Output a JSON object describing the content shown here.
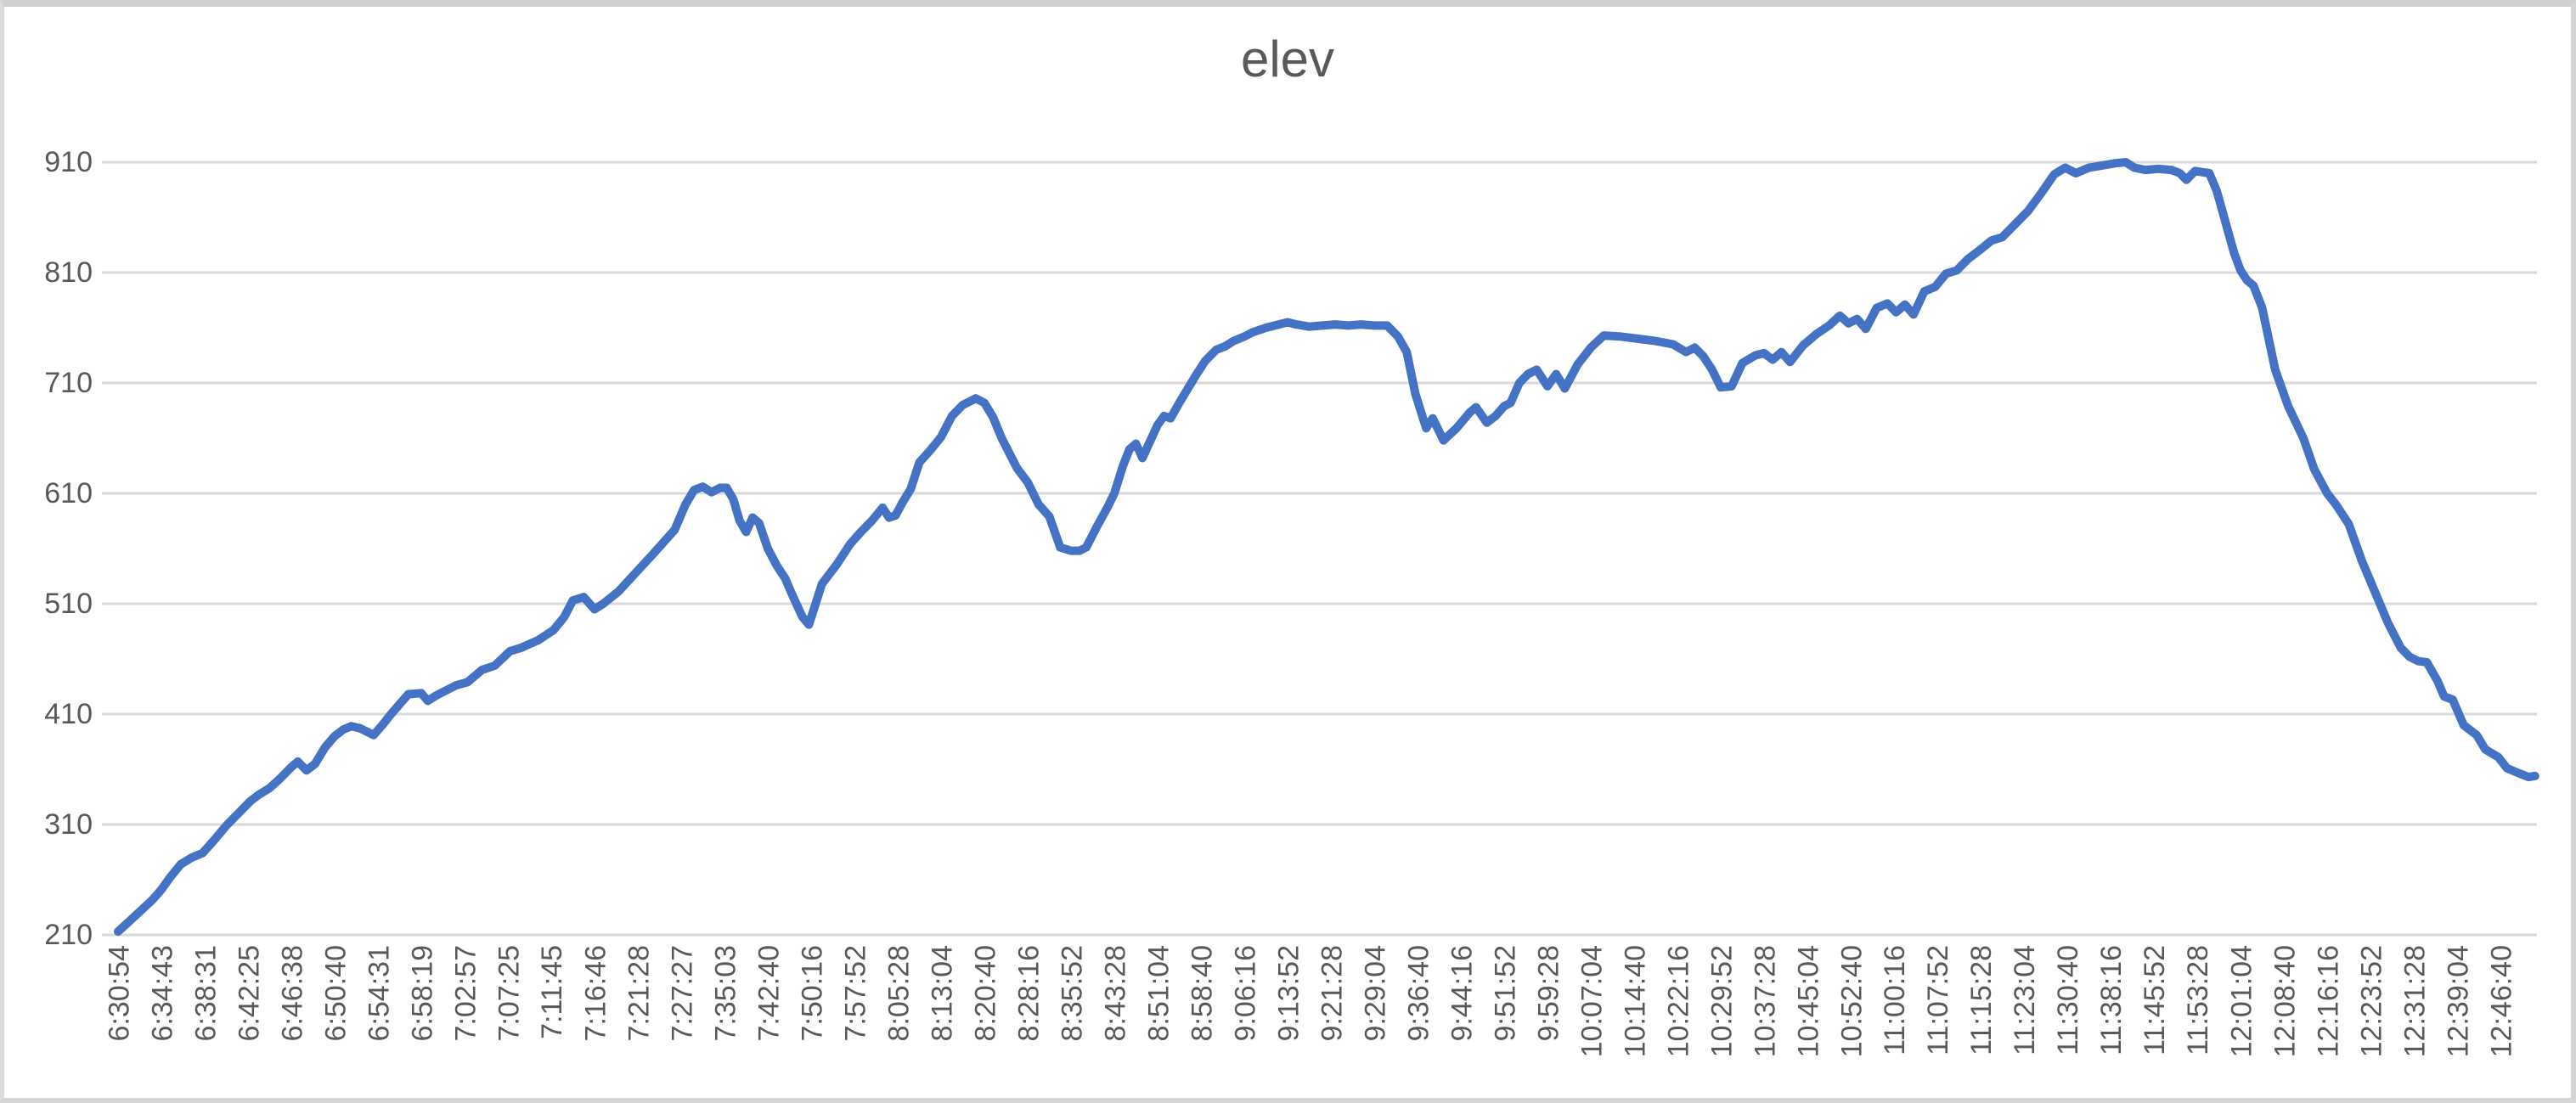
{
  "chart_data": {
    "type": "line",
    "title": "elev",
    "xlabel": "",
    "ylabel": "",
    "ylim": [
      210,
      910
    ],
    "y_ticks": [
      910,
      810,
      710,
      610,
      510,
      410,
      310,
      210
    ],
    "grid": "horizontal",
    "legend": "none",
    "gridline_color": "#D9D9D9",
    "axis_text_color": "#595959",
    "title_color": "#595959",
    "x_units": "category index; one unit equals one x-axis label interval, labels listed in x_tick_labels",
    "x_tick_labels": [
      "6:30:54",
      "6:34:43",
      "6:38:31",
      "6:42:25",
      "6:46:38",
      "6:50:40",
      "6:54:31",
      "6:58:19",
      "7:02:57",
      "7:07:25",
      "7:11:45",
      "7:16:46",
      "7:21:28",
      "7:27:27",
      "7:35:03",
      "7:42:40",
      "7:50:16",
      "7:57:52",
      "8:05:28",
      "8:13:04",
      "8:20:40",
      "8:28:16",
      "8:35:52",
      "8:43:28",
      "8:51:04",
      "8:58:40",
      "9:06:16",
      "9:13:52",
      "9:21:28",
      "9:29:04",
      "9:36:40",
      "9:44:16",
      "9:51:52",
      "9:59:28",
      "10:07:04",
      "10:14:40",
      "10:22:16",
      "10:29:52",
      "10:37:28",
      "10:45:04",
      "10:52:40",
      "11:00:16",
      "11:07:52",
      "11:15:28",
      "11:23:04",
      "11:30:40",
      "11:38:16",
      "11:45:52",
      "11:53:28",
      "12:01:04",
      "12:08:40",
      "12:16:16",
      "12:23:52",
      "12:31:28",
      "12:39:04",
      "12:46:40"
    ],
    "series": [
      {
        "name": "elev",
        "color": "#4472C4",
        "stroke_width": 10,
        "points": [
          [
            0,
            213
          ],
          [
            0.25,
            222
          ],
          [
            0.5,
            231
          ],
          [
            0.8,
            242
          ],
          [
            1.0,
            251
          ],
          [
            1.2,
            262
          ],
          [
            1.45,
            274
          ],
          [
            1.7,
            280
          ],
          [
            1.95,
            284
          ],
          [
            2.2,
            295
          ],
          [
            2.5,
            309
          ],
          [
            2.8,
            321
          ],
          [
            3.05,
            331
          ],
          [
            3.25,
            337
          ],
          [
            3.5,
            343
          ],
          [
            3.75,
            352
          ],
          [
            4.0,
            362
          ],
          [
            4.15,
            367
          ],
          [
            4.35,
            359
          ],
          [
            4.55,
            365
          ],
          [
            4.78,
            380
          ],
          [
            5.0,
            390
          ],
          [
            5.2,
            396
          ],
          [
            5.38,
            399
          ],
          [
            5.6,
            397
          ],
          [
            5.9,
            391
          ],
          [
            6.1,
            400
          ],
          [
            6.28,
            409
          ],
          [
            6.5,
            419
          ],
          [
            6.7,
            428
          ],
          [
            7.0,
            429
          ],
          [
            7.15,
            422
          ],
          [
            7.35,
            427
          ],
          [
            7.6,
            432
          ],
          [
            7.8,
            436
          ],
          [
            8.07,
            439
          ],
          [
            8.4,
            450
          ],
          [
            8.7,
            454
          ],
          [
            9.05,
            467
          ],
          [
            9.3,
            470
          ],
          [
            9.7,
            477
          ],
          [
            10.05,
            486
          ],
          [
            10.3,
            498
          ],
          [
            10.5,
            513
          ],
          [
            10.75,
            516
          ],
          [
            11.0,
            505
          ],
          [
            11.2,
            510
          ],
          [
            11.55,
            521
          ],
          [
            11.95,
            538
          ],
          [
            12.35,
            555
          ],
          [
            12.85,
            577
          ],
          [
            13.1,
            600
          ],
          [
            13.3,
            613
          ],
          [
            13.5,
            616
          ],
          [
            13.7,
            611
          ],
          [
            13.9,
            615
          ],
          [
            14.05,
            615
          ],
          [
            14.2,
            605
          ],
          [
            14.35,
            585
          ],
          [
            14.5,
            575
          ],
          [
            14.65,
            588
          ],
          [
            14.8,
            583
          ],
          [
            15.0,
            560
          ],
          [
            15.2,
            545
          ],
          [
            15.4,
            533
          ],
          [
            15.6,
            515
          ],
          [
            15.8,
            498
          ],
          [
            15.95,
            491
          ],
          [
            16.25,
            528
          ],
          [
            16.6,
            546
          ],
          [
            16.9,
            564
          ],
          [
            17.15,
            575
          ],
          [
            17.4,
            585
          ],
          [
            17.65,
            597
          ],
          [
            17.8,
            588
          ],
          [
            17.95,
            590
          ],
          [
            18.1,
            601
          ],
          [
            18.3,
            614
          ],
          [
            18.5,
            638
          ],
          [
            18.75,
            649
          ],
          [
            19.0,
            661
          ],
          [
            19.25,
            680
          ],
          [
            19.5,
            690
          ],
          [
            19.65,
            693
          ],
          [
            19.8,
            696
          ],
          [
            20.0,
            692
          ],
          [
            20.2,
            679
          ],
          [
            20.4,
            660
          ],
          [
            20.75,
            633
          ],
          [
            21.0,
            620
          ],
          [
            21.25,
            600
          ],
          [
            21.5,
            589
          ],
          [
            21.75,
            561
          ],
          [
            22.0,
            558
          ],
          [
            22.2,
            558
          ],
          [
            22.35,
            561
          ],
          [
            22.6,
            580
          ],
          [
            22.85,
            598
          ],
          [
            23.0,
            610
          ],
          [
            23.2,
            635
          ],
          [
            23.35,
            650
          ],
          [
            23.5,
            655
          ],
          [
            23.65,
            642
          ],
          [
            23.8,
            655
          ],
          [
            24.0,
            672
          ],
          [
            24.15,
            680
          ],
          [
            24.3,
            678
          ],
          [
            24.5,
            692
          ],
          [
            24.7,
            705
          ],
          [
            24.9,
            718
          ],
          [
            25.1,
            730
          ],
          [
            25.35,
            740
          ],
          [
            25.55,
            743
          ],
          [
            25.75,
            748
          ],
          [
            26.0,
            752
          ],
          [
            26.2,
            756
          ],
          [
            26.5,
            760
          ],
          [
            26.8,
            763
          ],
          [
            27.0,
            765
          ],
          [
            27.2,
            763
          ],
          [
            27.5,
            761
          ],
          [
            27.8,
            762
          ],
          [
            28.1,
            763
          ],
          [
            28.4,
            762
          ],
          [
            28.7,
            763
          ],
          [
            29.0,
            762
          ],
          [
            29.3,
            762
          ],
          [
            29.55,
            752
          ],
          [
            29.75,
            738
          ],
          [
            29.95,
            700
          ],
          [
            30.2,
            669
          ],
          [
            30.35,
            678
          ],
          [
            30.6,
            658
          ],
          [
            30.9,
            669
          ],
          [
            31.2,
            683
          ],
          [
            31.35,
            688
          ],
          [
            31.6,
            674
          ],
          [
            31.8,
            680
          ],
          [
            32.0,
            689
          ],
          [
            32.15,
            692
          ],
          [
            32.35,
            710
          ],
          [
            32.55,
            718
          ],
          [
            32.75,
            722
          ],
          [
            33.0,
            707
          ],
          [
            33.2,
            718
          ],
          [
            33.4,
            705
          ],
          [
            33.7,
            727
          ],
          [
            34.0,
            742
          ],
          [
            34.3,
            753
          ],
          [
            34.7,
            752
          ],
          [
            35.1,
            750
          ],
          [
            35.5,
            748
          ],
          [
            35.9,
            745
          ],
          [
            36.2,
            738
          ],
          [
            36.4,
            742
          ],
          [
            36.6,
            734
          ],
          [
            36.8,
            722
          ],
          [
            37.0,
            706
          ],
          [
            37.25,
            707
          ],
          [
            37.5,
            728
          ],
          [
            37.8,
            735
          ],
          [
            38.0,
            737
          ],
          [
            38.2,
            731
          ],
          [
            38.4,
            738
          ],
          [
            38.6,
            729
          ],
          [
            38.9,
            744
          ],
          [
            39.2,
            754
          ],
          [
            39.5,
            762
          ],
          [
            39.75,
            771
          ],
          [
            39.95,
            764
          ],
          [
            40.15,
            768
          ],
          [
            40.35,
            759
          ],
          [
            40.6,
            778
          ],
          [
            40.85,
            782
          ],
          [
            41.05,
            774
          ],
          [
            41.25,
            781
          ],
          [
            41.45,
            772
          ],
          [
            41.7,
            793
          ],
          [
            41.95,
            797
          ],
          [
            42.2,
            809
          ],
          [
            42.45,
            812
          ],
          [
            42.7,
            822
          ],
          [
            43.0,
            831
          ],
          [
            43.25,
            839
          ],
          [
            43.5,
            842
          ],
          [
            43.75,
            852
          ],
          [
            44.1,
            866
          ],
          [
            44.4,
            882
          ],
          [
            44.7,
            899
          ],
          [
            44.95,
            905
          ],
          [
            45.2,
            900
          ],
          [
            45.5,
            905
          ],
          [
            45.8,
            907
          ],
          [
            46.1,
            909
          ],
          [
            46.35,
            910
          ],
          [
            46.55,
            905
          ],
          [
            46.8,
            903
          ],
          [
            47.1,
            904
          ],
          [
            47.4,
            903
          ],
          [
            47.6,
            900
          ],
          [
            47.75,
            894
          ],
          [
            47.95,
            902
          ],
          [
            48.28,
            900
          ],
          [
            48.45,
            884
          ],
          [
            48.65,
            856
          ],
          [
            48.85,
            828
          ],
          [
            49.0,
            812
          ],
          [
            49.15,
            803
          ],
          [
            49.3,
            798
          ],
          [
            49.5,
            778
          ],
          [
            49.8,
            722
          ],
          [
            50.1,
            689
          ],
          [
            50.45,
            660
          ],
          [
            50.7,
            632
          ],
          [
            51.0,
            610
          ],
          [
            51.2,
            600
          ],
          [
            51.5,
            582
          ],
          [
            51.8,
            549
          ],
          [
            52.1,
            521
          ],
          [
            52.4,
            493
          ],
          [
            52.7,
            470
          ],
          [
            52.9,
            462
          ],
          [
            53.1,
            458
          ],
          [
            53.3,
            457
          ],
          [
            53.55,
            440
          ],
          [
            53.7,
            426
          ],
          [
            53.9,
            423
          ],
          [
            54.15,
            400
          ],
          [
            54.45,
            391
          ],
          [
            54.65,
            378
          ],
          [
            54.95,
            371
          ],
          [
            55.15,
            361
          ],
          [
            55.45,
            356
          ],
          [
            55.65,
            353
          ],
          [
            55.8,
            354
          ]
        ]
      }
    ]
  }
}
